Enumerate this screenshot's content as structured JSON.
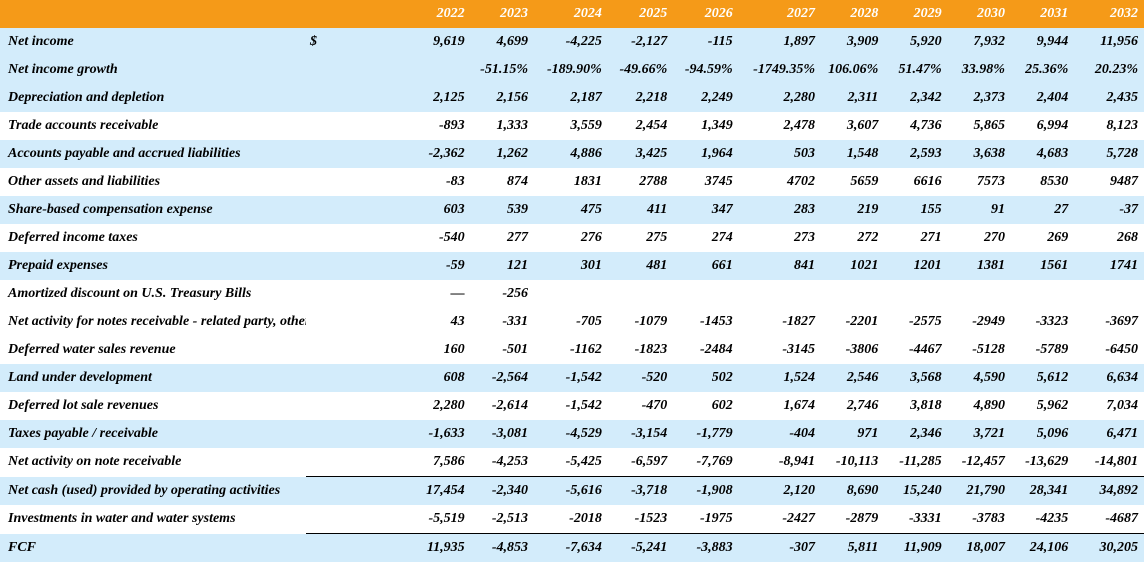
{
  "years": [
    "2022",
    "2023",
    "2024",
    "2025",
    "2026",
    "2027",
    "2028",
    "2029",
    "2030",
    "2031",
    "2032"
  ],
  "rows": [
    {
      "label": "Net income",
      "currency": "$",
      "values": [
        "9,619",
        "4,699",
        "-4,225",
        "-2,127",
        "-115",
        "1,897",
        "3,909",
        "5,920",
        "7,932",
        "9,944",
        "11,956"
      ]
    },
    {
      "label": "Net income growth",
      "values": [
        "",
        "-51.15%",
        "-189.90%",
        "-49.66%",
        "-94.59%",
        "-1749.35%",
        "106.06%",
        "51.47%",
        "33.98%",
        "25.36%",
        "20.23%"
      ]
    },
    {
      "label": "Depreciation and depletion",
      "values": [
        "2,125",
        "2,156",
        "2,187",
        "2,218",
        "2,249",
        "2,280",
        "2,311",
        "2,342",
        "2,373",
        "2,404",
        "2,435"
      ]
    },
    {
      "label": "Trade accounts receivable",
      "values": [
        "-893",
        "1,333",
        "3,559",
        "2,454",
        "1,349",
        "2,478",
        "3,607",
        "4,736",
        "5,865",
        "6,994",
        "8,123"
      ]
    },
    {
      "label": "Accounts payable and accrued liabilities",
      "values": [
        "-2,362",
        "1,262",
        "4,886",
        "3,425",
        "1,964",
        "503",
        "1,548",
        "2,593",
        "3,638",
        "4,683",
        "5,728"
      ]
    },
    {
      "label": "Other assets and liabilities",
      "values": [
        "-83",
        "874",
        "1831",
        "2788",
        "3745",
        "4702",
        "5659",
        "6616",
        "7573",
        "8530",
        "9487"
      ]
    },
    {
      "label": "Share-based compensation expense",
      "values": [
        "603",
        "539",
        "475",
        "411",
        "347",
        "283",
        "219",
        "155",
        "91",
        "27",
        "-37"
      ]
    },
    {
      "label": "Deferred income taxes",
      "values": [
        "-540",
        "277",
        "276",
        "275",
        "274",
        "273",
        "272",
        "271",
        "270",
        "269",
        "268"
      ]
    },
    {
      "label": "Prepaid expenses",
      "values": [
        "-59",
        "121",
        "301",
        "481",
        "661",
        "841",
        "1021",
        "1201",
        "1381",
        "1561",
        "1741"
      ]
    },
    {
      "label": "Amortized discount on U.S. Treasury Bills",
      "values": [
        "—",
        "-256",
        "",
        "",
        "",
        "",
        "",
        "",
        "",
        "",
        ""
      ]
    },
    {
      "label": "Net activity for notes receivable - related party, other",
      "values": [
        "43",
        "-331",
        "-705",
        "-1079",
        "-1453",
        "-1827",
        "-2201",
        "-2575",
        "-2949",
        "-3323",
        "-3697"
      ]
    },
    {
      "label": "Deferred water sales revenue",
      "values": [
        "160",
        "-501",
        "-1162",
        "-1823",
        "-2484",
        "-3145",
        "-3806",
        "-4467",
        "-5128",
        "-5789",
        "-6450"
      ]
    },
    {
      "label": "Land under development",
      "values": [
        "608",
        "-2,564",
        "-1,542",
        "-520",
        "502",
        "1,524",
        "2,546",
        "3,568",
        "4,590",
        "5,612",
        "6,634"
      ]
    },
    {
      "label": "Deferred lot sale revenues",
      "values": [
        "2,280",
        "-2,614",
        "-1,542",
        "-470",
        "602",
        "1,674",
        "2,746",
        "3,818",
        "4,890",
        "5,962",
        "7,034"
      ]
    },
    {
      "label": "Taxes payable / receivable",
      "values": [
        "-1,633",
        "-3,081",
        "-4,529",
        "-3,154",
        "-1,779",
        "-404",
        "971",
        "2,346",
        "3,721",
        "5,096",
        "6,471"
      ]
    },
    {
      "label": "Net activity on note receivable",
      "values": [
        "7,586",
        "-4,253",
        "-5,425",
        "-6,597",
        "-7,769",
        "-8,941",
        "-10,113",
        "-11,285",
        "-12,457",
        "-13,629",
        "-14,801"
      ]
    },
    {
      "label": "Net cash (used) provided by operating activities",
      "values": [
        "17,454",
        "-2,340",
        "-5,616",
        "-3,718",
        "-1,908",
        "2,120",
        "8,690",
        "15,240",
        "21,790",
        "28,341",
        "34,892"
      ]
    },
    {
      "label": "Investments in water and water systems",
      "values": [
        "-5,519",
        "-2,513",
        "-2018",
        "-1523",
        "-1975",
        "-2427",
        "-2879",
        "-3331",
        "-3783",
        "-4235",
        "-4687"
      ]
    },
    {
      "label": "FCF",
      "values": [
        "11,935",
        "-4,853",
        "-7,634",
        "-5,241",
        "-3,883",
        "-307",
        "5,811",
        "11,909",
        "18,007",
        "24,106",
        "30,205"
      ]
    }
  ]
}
